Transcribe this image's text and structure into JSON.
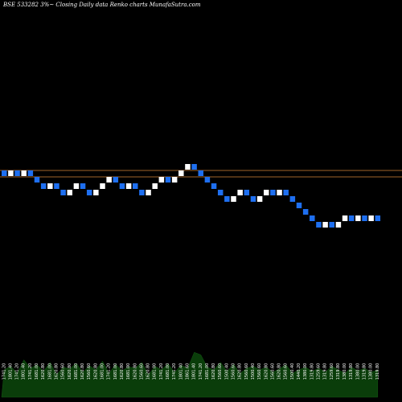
{
  "title": "BSE 533282  3%~  Closing Daily data  Renko  charts MunafaSutra.com",
  "colors": {
    "background": "#000000",
    "up_brick": "#ffffff",
    "down_brick": "#1e6ff0",
    "reference_line": "#a0642a",
    "volume_area": "#0a3d0a",
    "label_text": "#ffffff"
  },
  "chart_data": {
    "type": "renko",
    "reference_lines": [
      1801.4,
      1741.2
    ],
    "brick_size_pct": 3,
    "bricks": [
      {
        "dir": "down",
        "close": 1741.2
      },
      {
        "dir": "up",
        "close": 1801.4
      },
      {
        "dir": "down",
        "close": 1741.2
      },
      {
        "dir": "up",
        "close": 1801.4
      },
      {
        "dir": "down",
        "close": 1741.2
      },
      {
        "dir": "down",
        "close": 1681.0
      },
      {
        "dir": "down",
        "close": 1620.8
      },
      {
        "dir": "up",
        "close": 1681.0
      },
      {
        "dir": "down",
        "close": 1620.8
      },
      {
        "dir": "down",
        "close": 1560.6
      },
      {
        "dir": "up",
        "close": 1620.8
      },
      {
        "dir": "up",
        "close": 1681.0
      },
      {
        "dir": "down",
        "close": 1620.8
      },
      {
        "dir": "down",
        "close": 1560.6
      },
      {
        "dir": "up",
        "close": 1620.8
      },
      {
        "dir": "up",
        "close": 1681.0
      },
      {
        "dir": "up",
        "close": 1741.2
      },
      {
        "dir": "down",
        "close": 1681.0
      },
      {
        "dir": "down",
        "close": 1620.8
      },
      {
        "dir": "up",
        "close": 1681.0
      },
      {
        "dir": "down",
        "close": 1620.8
      },
      {
        "dir": "down",
        "close": 1560.6
      },
      {
        "dir": "up",
        "close": 1620.8
      },
      {
        "dir": "up",
        "close": 1681.0
      },
      {
        "dir": "up",
        "close": 1741.2
      },
      {
        "dir": "down",
        "close": 1681.0
      },
      {
        "dir": "up",
        "close": 1741.2
      },
      {
        "dir": "up",
        "close": 1801.4
      },
      {
        "dir": "up",
        "close": 1861.6
      },
      {
        "dir": "down",
        "close": 1801.4
      },
      {
        "dir": "down",
        "close": 1741.2
      },
      {
        "dir": "down",
        "close": 1681.0
      },
      {
        "dir": "down",
        "close": 1620.8
      },
      {
        "dir": "down",
        "close": 1560.6
      },
      {
        "dir": "down",
        "close": 1500.4
      },
      {
        "dir": "up",
        "close": 1560.6
      },
      {
        "dir": "up",
        "close": 1620.8
      },
      {
        "dir": "down",
        "close": 1560.6
      },
      {
        "dir": "down",
        "close": 1500.4
      },
      {
        "dir": "up",
        "close": 1560.6
      },
      {
        "dir": "up",
        "close": 1620.8
      },
      {
        "dir": "down",
        "close": 1560.6
      },
      {
        "dir": "up",
        "close": 1620.8
      },
      {
        "dir": "down",
        "close": 1560.6
      },
      {
        "dir": "down",
        "close": 1500.4
      },
      {
        "dir": "down",
        "close": 1440.2
      },
      {
        "dir": "down",
        "close": 1380.0
      },
      {
        "dir": "down",
        "close": 1319.8
      },
      {
        "dir": "down",
        "close": 1259.6
      },
      {
        "dir": "up",
        "close": 1319.8
      },
      {
        "dir": "down",
        "close": 1259.6
      },
      {
        "dir": "up",
        "close": 1319.8
      },
      {
        "dir": "up",
        "close": 1380.0
      },
      {
        "dir": "down",
        "close": 1319.8
      },
      {
        "dir": "up",
        "close": 1380.0
      },
      {
        "dir": "down",
        "close": 1319.8
      },
      {
        "dir": "up",
        "close": 1380.0
      },
      {
        "dir": "down",
        "close": 1319.8
      }
    ],
    "volume_heights": [
      0.55,
      0.62,
      0.48,
      0.75,
      0.58,
      0.65,
      0.52,
      0.7,
      0.45,
      0.6,
      0.57,
      0.68,
      0.5,
      0.63,
      0.55,
      0.72,
      0.48,
      0.66,
      0.53,
      0.61,
      0.58,
      0.7,
      0.45,
      0.62,
      0.55,
      0.67,
      0.5,
      0.64,
      0.58,
      0.9,
      0.85,
      0.6,
      0.55,
      0.7,
      0.52,
      0.66,
      0.48,
      0.58,
      0.62,
      0.55,
      0.6,
      0.5,
      0.57,
      0.65,
      0.48,
      0.55,
      0.6,
      0.52,
      0.58,
      0.5,
      0.62,
      0.55,
      0.48,
      0.6,
      0.53,
      0.58,
      0.5,
      0.55
    ],
    "tick_labels": [
      "1741.20",
      "1801.40",
      "1741.20",
      "1801.40",
      "1741.20",
      "1681.00",
      "1620.80",
      "1681.00",
      "1620.80",
      "1560.60",
      "1620.80",
      "1681.00",
      "1620.80",
      "1560.60",
      "1620.80",
      "1681.00",
      "1741.20",
      "1681.00",
      "1620.80",
      "1681.00",
      "1620.80",
      "1560.60",
      "1620.80",
      "1681.00",
      "1741.20",
      "1681.00",
      "1741.20",
      "1801.40",
      "1861.60",
      "1801.40",
      "1741.20",
      "1681.00",
      "1620.80",
      "1560.60",
      "1500.40",
      "1560.60",
      "1620.80",
      "1560.60",
      "1500.40",
      "1560.60",
      "1620.80",
      "1560.60",
      "1620.80",
      "1560.60",
      "1500.40",
      "1440.20",
      "1380.00",
      "1319.80",
      "1259.60",
      "1319.80",
      "1259.60",
      "1319.80",
      "1380.00",
      "1319.80",
      "1380.00",
      "1319.80",
      "1380.00",
      "1319.80"
    ]
  }
}
